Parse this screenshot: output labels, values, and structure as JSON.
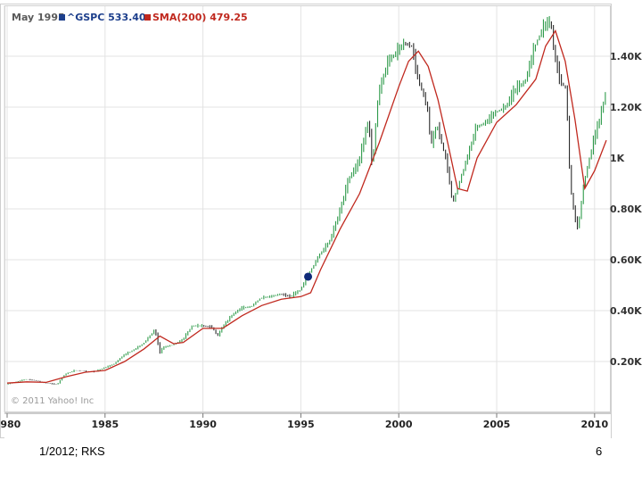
{
  "legend": {
    "date": "May 1995",
    "symbol_label": "^GSPC 533.40",
    "sma_label": "SMA(200) 479.25"
  },
  "copyright": "© 2011 Yahoo! Inc",
  "footer": {
    "left": "1/2012; RKS",
    "right": "6"
  },
  "colors": {
    "price_up": "#2e9a4a",
    "price_down": "#2b2b2b",
    "sma": "#c0281e",
    "marker": "#0f2a78",
    "symbol_swatch": "#1d3f8c"
  },
  "chart_data": {
    "type": "line",
    "x_ticks": [
      "1980",
      "1985",
      "1990",
      "1995",
      "2000",
      "2005",
      "2010"
    ],
    "y_ticks": [
      "0.20K",
      "0.40K",
      "0.60K",
      "0.80K",
      "1K",
      "1.20K",
      "1.40K"
    ],
    "ylim": [
      0,
      1600
    ],
    "xlim": [
      1980,
      2010.6
    ],
    "marker": {
      "x": 1995.37,
      "y": 533.4
    },
    "series": [
      {
        "name": "^GSPC",
        "x": [
          1980,
          1980.5,
          1981,
          1981.5,
          1982,
          1982.6,
          1983,
          1983.5,
          1984,
          1984.5,
          1985,
          1985.5,
          1986,
          1986.5,
          1987,
          1987.6,
          1987.85,
          1988,
          1988.5,
          1989,
          1989.5,
          1990,
          1990.5,
          1990.8,
          1991,
          1991.5,
          1992,
          1992.5,
          1993,
          1993.5,
          1994,
          1994.5,
          1995,
          1995.5,
          1996,
          1996.5,
          1997,
          1997.5,
          1998,
          1998.5,
          1998.7,
          1999,
          1999.5,
          2000,
          2000.3,
          2000.7,
          2001,
          2001.5,
          2001.7,
          2002,
          2002.5,
          2002.8,
          2003,
          2003.5,
          2004,
          2004.5,
          2005,
          2005.5,
          2006,
          2006.5,
          2007,
          2007.4,
          2007.8,
          2008,
          2008.3,
          2008.6,
          2008.8,
          2009,
          2009.2,
          2009.5,
          2010,
          2010.3,
          2010.6
        ],
        "values": [
          110,
          120,
          130,
          125,
          115,
          110,
          150,
          165,
          162,
          160,
          175,
          190,
          225,
          245,
          270,
          325,
          235,
          255,
          265,
          285,
          340,
          340,
          335,
          300,
          330,
          380,
          410,
          415,
          450,
          455,
          465,
          455,
          480,
          550,
          620,
          670,
          780,
          920,
          980,
          1150,
          960,
          1250,
          1380,
          1420,
          1450,
          1440,
          1320,
          1200,
          1050,
          1130,
          980,
          820,
          870,
          990,
          1120,
          1140,
          1180,
          1200,
          1270,
          1300,
          1440,
          1510,
          1540,
          1400,
          1300,
          1270,
          900,
          780,
          720,
          900,
          1070,
          1150,
          1250
        ]
      },
      {
        "name": "SMA(200)",
        "x": [
          1980,
          1981,
          1982,
          1983,
          1984,
          1985,
          1986,
          1987,
          1987.8,
          1988.5,
          1989,
          1990,
          1991,
          1992,
          1993,
          1994,
          1995,
          1995.5,
          1996,
          1997,
          1998,
          1999,
          2000,
          2000.5,
          2001,
          2001.5,
          2002,
          2002.5,
          2003,
          2003.5,
          2004,
          2005,
          2006,
          2007,
          2007.5,
          2008,
          2008.5,
          2009,
          2009.5,
          2010,
          2010.6
        ],
        "values": [
          115,
          120,
          118,
          140,
          158,
          165,
          200,
          250,
          300,
          270,
          275,
          330,
          330,
          380,
          420,
          445,
          455,
          470,
          560,
          720,
          860,
          1060,
          1280,
          1380,
          1420,
          1360,
          1230,
          1060,
          880,
          870,
          1000,
          1140,
          1210,
          1310,
          1440,
          1500,
          1380,
          1150,
          880,
          950,
          1070
        ]
      }
    ]
  }
}
